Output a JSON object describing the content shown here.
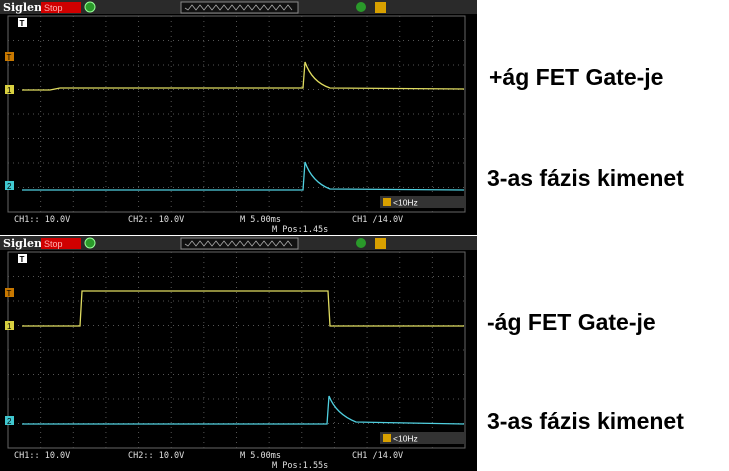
{
  "panels": [
    {
      "brand": "Siglent",
      "status": "Stop",
      "grid_mark": "T",
      "trigger_mark": "T",
      "ch1_mark": "1",
      "ch2_mark": "2",
      "trigger_freq": "<10Hz",
      "footer": {
        "ch1": "CH1:: 10.0V",
        "ch2": "CH2:: 10.0V",
        "timebase": "M 5.00ms",
        "trigger": "CH1 /14.0V",
        "position": "M Pos:1.45s"
      }
    },
    {
      "brand": "Siglent",
      "status": "Stop",
      "grid_mark": "T",
      "trigger_mark": "T",
      "ch1_mark": "1",
      "ch2_mark": "2",
      "trigger_freq": "<10Hz",
      "footer": {
        "ch1": "CH1:: 10.0V",
        "ch2": "CH2:: 10.0V",
        "timebase": "M 5.00ms",
        "trigger": "CH1 /14.0V",
        "position": "M Pos:1.55s"
      }
    }
  ],
  "annotations": [
    "+ág FET Gate-je",
    "3-as fázis kimenet",
    "-ág FET Gate-je",
    "3-as fázis kimenet"
  ]
}
